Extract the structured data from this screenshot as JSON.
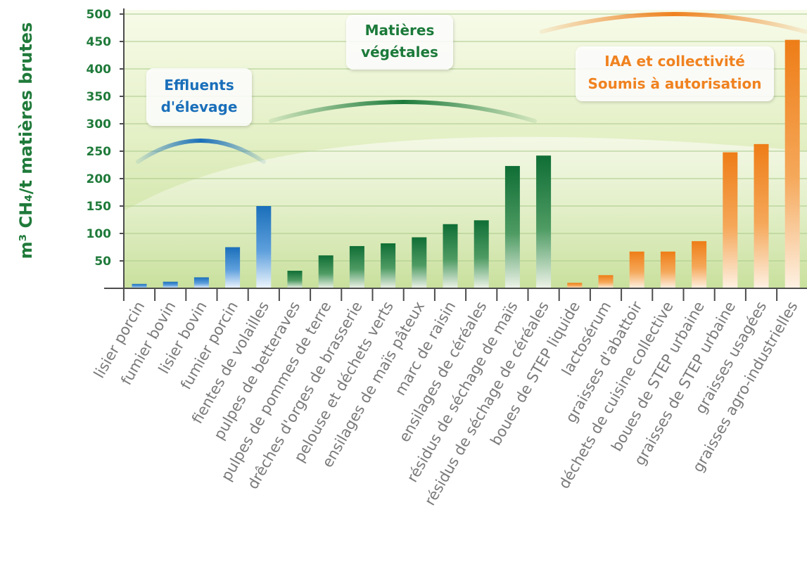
{
  "chart_data": {
    "type": "bar",
    "ylabel": "m³ CH₄/t matières brutes",
    "ylim": [
      0,
      500
    ],
    "yticks": [
      50,
      100,
      150,
      200,
      250,
      300,
      350,
      400,
      450,
      500
    ],
    "grid": true,
    "categories": [
      "lisier porcin",
      "fumier bovin",
      "lisier bovin",
      "fumier porcin",
      "fientes de volailles",
      "pulpes de betteraves",
      "pulpes de pommes de terre",
      "drêches d'orges de brasserie",
      "pelouse et déchets verts",
      "ensilages de maïs pâteux",
      "marc de raisin",
      "ensilages de céréales",
      "résidus de séchage de maïs",
      "résidus de séchage de céréales",
      "boues de STEP liquide",
      "lactosérum",
      "graisses d'abattoir",
      "déchets de cuisine collective",
      "boues de STEP urbaine",
      "graisses de STEP urbaine",
      "graisses usagées",
      "graisses agro-industrielles"
    ],
    "values": [
      8,
      12,
      20,
      75,
      150,
      32,
      60,
      77,
      82,
      93,
      117,
      124,
      223,
      242,
      10,
      24,
      67,
      67,
      86,
      248,
      263,
      453
    ],
    "groups": [
      {
        "name": "Effluents\nd'élevage",
        "color": "#1a6fba",
        "indices": [
          0,
          1,
          2,
          3,
          4
        ]
      },
      {
        "name": "Matières\nvégétales",
        "color": "#1b7a3a",
        "indices": [
          5,
          6,
          7,
          8,
          9,
          10,
          11,
          12,
          13
        ]
      },
      {
        "name": "IAA et collectivité\nSoumis à autorisation",
        "color": "#f08220",
        "indices": [
          14,
          15,
          16,
          17,
          18,
          19,
          20,
          21
        ]
      }
    ]
  },
  "callouts": {
    "effluents": {
      "line1": "Effluents",
      "line2": "d'élevage",
      "color": "#1a6fba"
    },
    "vegetales": {
      "line1": "Matières",
      "line2": "végétales",
      "color": "#1b7a3a"
    },
    "iaa": {
      "line1": "IAA et collectivité",
      "line2": "Soumis à autorisation",
      "color": "#f08220"
    }
  },
  "colors": {
    "blue": "#1a6fba",
    "green": "#1b7a3a",
    "orange": "#f08220",
    "background_green": "#d6e8b4"
  }
}
